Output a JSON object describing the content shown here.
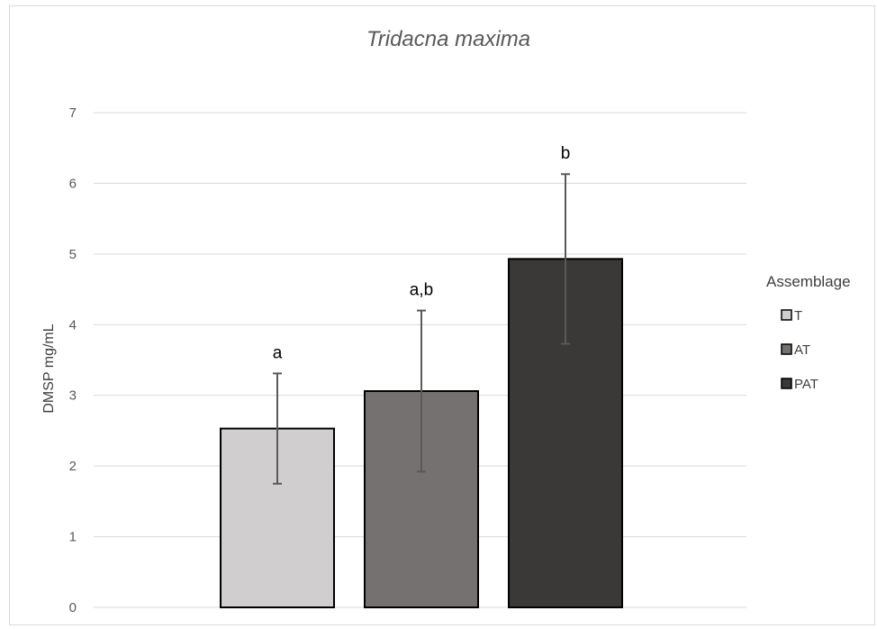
{
  "chart_data": {
    "type": "bar",
    "title": "Tridacna maxima",
    "xlabel": "",
    "ylabel": "DMSP mg/mL",
    "ylim": [
      0,
      7
    ],
    "yticks": [
      0,
      1,
      2,
      3,
      4,
      5,
      6,
      7
    ],
    "grid": true,
    "legend": {
      "title": "Assemblage",
      "placement": "right"
    },
    "categories": [
      "T",
      "AT",
      "PAT"
    ],
    "values": [
      2.53,
      3.06,
      4.93
    ],
    "error": [
      0.78,
      1.14,
      1.2
    ],
    "significance_labels": [
      "a",
      "a,b",
      "b"
    ],
    "colors": [
      "#d0cece",
      "#767171",
      "#3b3838"
    ]
  }
}
